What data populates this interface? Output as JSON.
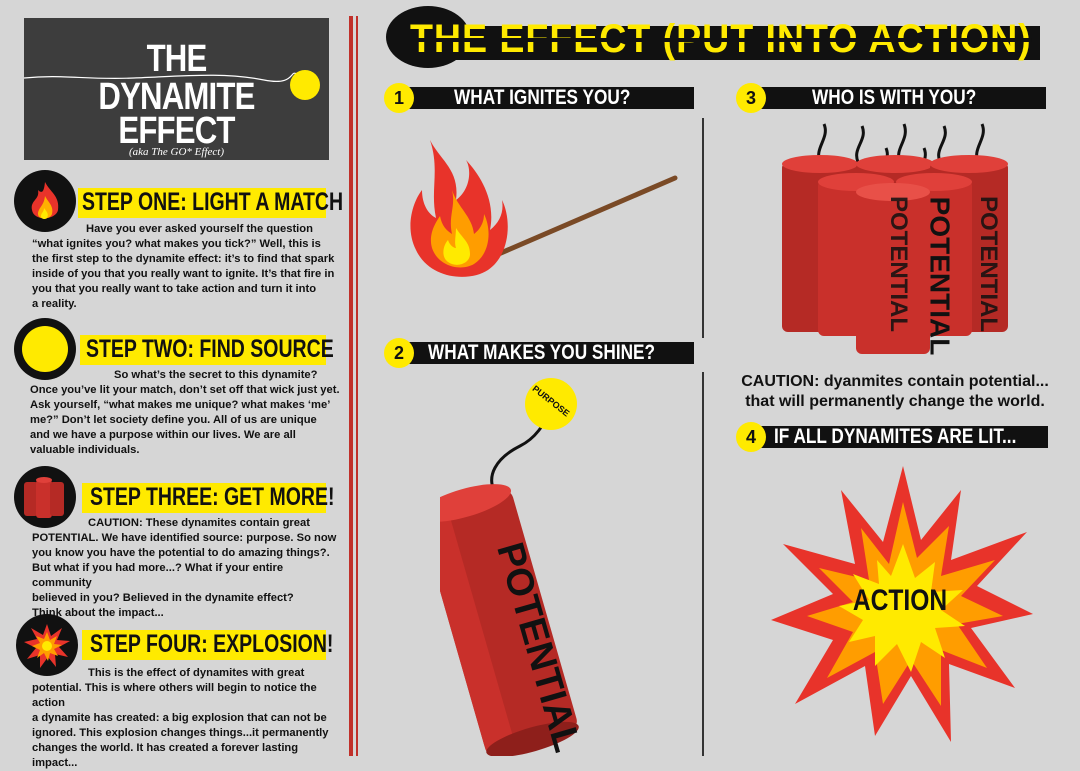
{
  "title": {
    "line1": "THE",
    "line2": "DYNAMITE",
    "line3": "EFFECT",
    "aka": "(aka The GO* Effect)"
  },
  "steps": [
    {
      "title": "STEP ONE: LIGHT A MATCH",
      "icon": "flame-icon",
      "lines": [
        "Have you ever asked yourself the question",
        "“what ignites you? what makes you tick?”  Well, this is",
        "the first step to the dynamite effect: it’s to find that spark",
        "inside of you that you really want to ignite.  It’s that fire in",
        "you that you really want to take action and turn it into",
        "a reality."
      ]
    },
    {
      "title": "STEP TWO: FIND SOURCE",
      "icon": "yellow-circle-icon",
      "lines": [
        "So what’s the secret to this dynamite?",
        "Once you’ve lit  your match, don’t set off that wick just yet.",
        "Ask yourself, “what makes me unique? what makes ‘me’",
        "me?” Don’t let society define you. All of us are unique",
        "and we have a purpose within our lives.  We are all",
        "valuable individuals."
      ]
    },
    {
      "title": "STEP THREE: GET MORE!",
      "icon": "dynamite-icon",
      "lines": [
        "CAUTION: These dynamites contain great",
        "POTENTIAL.  We have identified source: purpose. So now",
        "you know you have the potential to do amazing things?.",
        "But what if you had more...? What if your entire community",
        "believed in you? Believed in the dynamite effect?",
        "Think about the impact..."
      ]
    },
    {
      "title": "STEP FOUR: EXPLOSION!",
      "icon": "explosion-icon",
      "lines": [
        "This is the effect of dynamites with great",
        "potential. This is where others will begin to notice the action",
        "a dynamite has created: a big explosion that can not be",
        "ignored. This explosion changes things...it permanently",
        "changes the world.  It has created a forever lasting impact..."
      ]
    }
  ],
  "effect": {
    "title": "THE EFFECT (PUT INTO ACTION)",
    "sections": [
      {
        "num": "1",
        "title": "WHAT IGNITES YOU?"
      },
      {
        "num": "2",
        "title": "WHAT MAKES YOU SHINE?"
      },
      {
        "num": "3",
        "title": "WHO IS WITH YOU?"
      },
      {
        "num": "4",
        "title": "IF ALL DYNAMITES ARE LIT..."
      }
    ],
    "purpose_label": "PURPOSE",
    "dynamite_label": "POTENTIAL",
    "caution_line1": "CAUTION: dyanmites contain potential...",
    "caution_line2": "that will permanently change the world.",
    "action_label": "ACTION"
  },
  "colors": {
    "yellow": "#ffea00",
    "red": "#c0302a",
    "dark": "#111111",
    "grey": "#d6d6d6"
  }
}
